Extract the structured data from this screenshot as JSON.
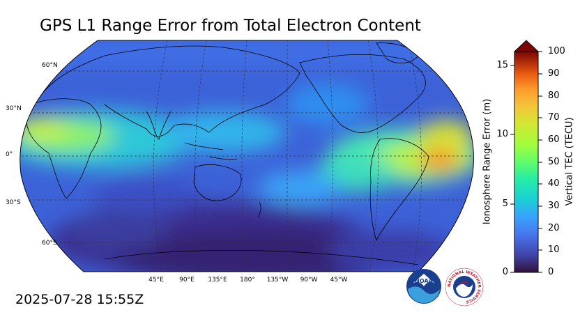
{
  "title": "GPS L1 Range Error from Total Electron Content",
  "timestamp": "2025-07-28 15:55Z",
  "map": {
    "projection": "robinson",
    "lat_labels": [
      "60°N",
      "30°N",
      "0°",
      "30°S",
      "60°S"
    ],
    "lon_labels": [
      "45°E",
      "90°E",
      "135°E",
      "180°",
      "135°W",
      "90°W",
      "45°W"
    ],
    "gridlines": "dashed"
  },
  "colorbar": {
    "left_label": "Ionosphere Range Error (m)",
    "right_label": "Vertical TEC (TECU)",
    "left_ticks": [
      "0",
      "5",
      "10",
      "15"
    ],
    "right_ticks": [
      "0",
      "10",
      "20",
      "30",
      "40",
      "50",
      "60",
      "70",
      "80",
      "90",
      "100"
    ],
    "extend": "max",
    "colormap": "turbo"
  },
  "logos": {
    "noaa": "NOAA",
    "nws": "NATIONAL WEATHER SERVICE"
  }
}
